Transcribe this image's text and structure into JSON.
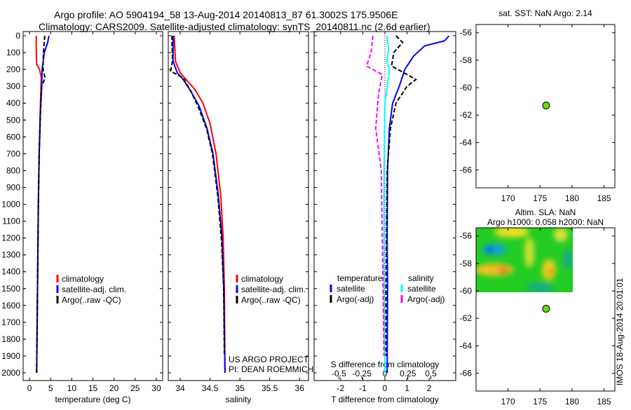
{
  "title": {
    "line1": "Argo profile: AO 5904194_58 13-Aug-2014 20140813_87 61.3002S 175.9506E",
    "line2": "Climatology: CARS2009. Satellite-adjusted climatology: synTS_20140811.nc (2.6d earlier)"
  },
  "colors": {
    "climatology": "#ff0000",
    "satellite": "#0000ff",
    "argo": "#000000",
    "sal_satellite": "#00ffff",
    "sal_argo": "#ff00ff",
    "dot": "#66dd00"
  },
  "chart_data": [
    {
      "type": "line",
      "id": "temperature",
      "xlabel": "temperature (deg C)",
      "ylabel": "",
      "xlim": [
        -1.5,
        31.5
      ],
      "ylim": [
        2050,
        0
      ],
      "xticks": [
        0,
        5,
        10,
        15,
        20,
        25,
        30
      ],
      "yticks": [
        0,
        100,
        200,
        300,
        400,
        500,
        600,
        700,
        800,
        900,
        1000,
        1100,
        1200,
        1300,
        1400,
        1500,
        1600,
        1700,
        1800,
        1900,
        2000
      ],
      "legend": [
        "climatology",
        "satellite-adj. clim.",
        "Argo(..raw -QC)"
      ],
      "series": [
        {
          "name": "climatology",
          "color": "#ff0000",
          "dash": false,
          "points": [
            [
              1.6,
              0
            ],
            [
              1.6,
              100
            ],
            [
              1.7,
              170
            ],
            [
              2.4,
              200
            ],
            [
              2.8,
              250
            ],
            [
              2.6,
              400
            ],
            [
              2.3,
              700
            ],
            [
              2.1,
              1000
            ],
            [
              1.9,
              1500
            ],
            [
              1.7,
              2000
            ]
          ]
        },
        {
          "name": "satellite-adj. clim.",
          "color": "#0000ff",
          "dash": false,
          "points": [
            [
              4.6,
              0
            ],
            [
              4.3,
              40
            ],
            [
              3.5,
              100
            ],
            [
              3.0,
              200
            ],
            [
              2.9,
              300
            ],
            [
              2.6,
              450
            ],
            [
              2.3,
              700
            ],
            [
              2.1,
              1000
            ],
            [
              1.9,
              1500
            ],
            [
              1.7,
              2000
            ]
          ]
        },
        {
          "name": "Argo(..raw -QC)",
          "color": "#000000",
          "dash": true,
          "points": [
            [
              3.6,
              0
            ],
            [
              3.3,
              100
            ],
            [
              3.2,
              200
            ],
            [
              3.7,
              250
            ],
            [
              2.9,
              300
            ],
            [
              2.6,
              450
            ],
            [
              2.3,
              700
            ],
            [
              2.1,
              1000
            ],
            [
              1.9,
              1500
            ],
            [
              1.7,
              2000
            ]
          ]
        }
      ]
    },
    {
      "type": "line",
      "id": "salinity",
      "xlabel": "salinity",
      "xlim": [
        33.8,
        36.15
      ],
      "ylim": [
        2050,
        0
      ],
      "xticks": [
        34,
        34.5,
        35,
        35.5,
        36
      ],
      "legend": [
        "climatology",
        "satellite-adj. clim.",
        "Argo(..raw -QC)"
      ],
      "annotation": [
        "US ARGO PROJECT",
        "PI: DEAN ROEMMICH"
      ],
      "series": [
        {
          "name": "climatology",
          "color": "#ff0000",
          "dash": false,
          "points": [
            [
              33.9,
              0
            ],
            [
              33.92,
              150
            ],
            [
              34.0,
              220
            ],
            [
              34.1,
              260
            ],
            [
              34.25,
              320
            ],
            [
              34.38,
              400
            ],
            [
              34.5,
              520
            ],
            [
              34.6,
              700
            ],
            [
              34.68,
              950
            ],
            [
              34.72,
              1200
            ],
            [
              34.74,
              1500
            ],
            [
              34.75,
              2000
            ]
          ]
        },
        {
          "name": "satellite-adj. clim.",
          "color": "#0000ff",
          "dash": false,
          "points": [
            [
              33.88,
              0
            ],
            [
              33.88,
              150
            ],
            [
              33.95,
              220
            ],
            [
              34.05,
              260
            ],
            [
              34.18,
              330
            ],
            [
              34.32,
              420
            ],
            [
              34.45,
              550
            ],
            [
              34.55,
              700
            ],
            [
              34.64,
              950
            ],
            [
              34.7,
              1200
            ],
            [
              34.73,
              1500
            ],
            [
              34.75,
              2000
            ]
          ]
        },
        {
          "name": "Argo(..raw -QC)",
          "color": "#000000",
          "dash": true,
          "points": [
            [
              33.86,
              0
            ],
            [
              33.87,
              150
            ],
            [
              33.84,
              210
            ],
            [
              34.05,
              250
            ],
            [
              34.18,
              330
            ],
            [
              34.3,
              420
            ],
            [
              34.44,
              550
            ],
            [
              34.54,
              700
            ],
            [
              34.63,
              950
            ],
            [
              34.69,
              1200
            ],
            [
              34.73,
              1500
            ],
            [
              34.74,
              1900
            ]
          ]
        }
      ]
    },
    {
      "type": "line",
      "id": "difference",
      "xlabel": "T difference from climatology",
      "x2label": "S difference from climatology",
      "xlim": [
        -3.2,
        3.2
      ],
      "x2lim": [
        -0.77,
        0.77
      ],
      "ylim": [
        2050,
        0
      ],
      "xticks": [
        -2,
        -1,
        0,
        1,
        2
      ],
      "x2ticks": [
        -0.5,
        -0.25,
        0,
        0.25,
        0.5
      ],
      "x2ticklabels": [
        "-0.5",
        "-0.25",
        "0",
        "0.25",
        "0.5"
      ],
      "legend_headers": [
        "temperature",
        "salinity"
      ],
      "legend": [
        "satellite",
        "Argo(-adj)",
        "satellite",
        "Argo(-adj)"
      ],
      "series": [
        {
          "name": "T satellite",
          "axis": "T",
          "color": "#0000ff",
          "dash": false,
          "points": [
            [
              2.9,
              0
            ],
            [
              2.7,
              30
            ],
            [
              1.8,
              60
            ],
            [
              1.3,
              120
            ],
            [
              0.9,
              200
            ],
            [
              0.65,
              300
            ],
            [
              0.35,
              400
            ],
            [
              0.2,
              550
            ],
            [
              0.12,
              800
            ],
            [
              0.1,
              1200
            ],
            [
              0.12,
              1500
            ],
            [
              0.1,
              2000
            ]
          ]
        },
        {
          "name": "T Argo(-adj)",
          "axis": "T",
          "color": "#000000",
          "dash": true,
          "points": [
            [
              0.5,
              0
            ],
            [
              0.8,
              40
            ],
            [
              0.4,
              100
            ],
            [
              0.3,
              180
            ],
            [
              1.0,
              230
            ],
            [
              1.4,
              260
            ],
            [
              1.0,
              300
            ],
            [
              0.5,
              400
            ],
            [
              0.25,
              550
            ],
            [
              0.1,
              800
            ],
            [
              0.05,
              1500
            ],
            [
              0.05,
              1900
            ]
          ]
        },
        {
          "name": "S satellite",
          "axis": "S",
          "color": "#00ffff",
          "dash": false,
          "points": [
            [
              0.02,
              0
            ],
            [
              0.04,
              80
            ],
            [
              0.02,
              150
            ],
            [
              0.05,
              200
            ],
            [
              0.0,
              400
            ],
            [
              -0.01,
              800
            ],
            [
              -0.01,
              1500
            ],
            [
              0.0,
              2000
            ]
          ]
        },
        {
          "name": "S Argo(-adj)",
          "axis": "S",
          "color": "#ff00ff",
          "dash": true,
          "points": [
            [
              -0.13,
              0
            ],
            [
              -0.15,
              100
            ],
            [
              -0.2,
              180
            ],
            [
              -0.03,
              230
            ],
            [
              -0.07,
              350
            ],
            [
              -0.1,
              550
            ],
            [
              -0.04,
              800
            ],
            [
              -0.02,
              1500
            ],
            [
              -0.01,
              1900
            ]
          ]
        }
      ]
    },
    {
      "type": "scatter",
      "id": "sst-map",
      "title": "sat. SST: NaN Argo: 2.14",
      "xlim": [
        165,
        186.7
      ],
      "ylim": [
        -67.3,
        -55.4
      ],
      "xticks": [
        170,
        175,
        180,
        185
      ],
      "yticks": [
        -56,
        -58,
        -60,
        -62,
        -64,
        -66
      ],
      "points": [
        [
          175.95,
          -61.3
        ]
      ]
    },
    {
      "type": "heatmap",
      "id": "sla-map",
      "title": "Altim. SLA: NaN",
      "subtitle": "Argo h1000: 0.058 h2000: NaN",
      "xlim": [
        165,
        186.7
      ],
      "ylim": [
        -67.3,
        -55.4
      ],
      "xticks": [
        170,
        175,
        180,
        185
      ],
      "yticks": [
        -56,
        -58,
        -60,
        -62,
        -64,
        -66
      ],
      "points": [
        [
          175.95,
          -61.3
        ]
      ]
    }
  ],
  "credit": "IMOS 18-Aug-2014 20:01:01"
}
